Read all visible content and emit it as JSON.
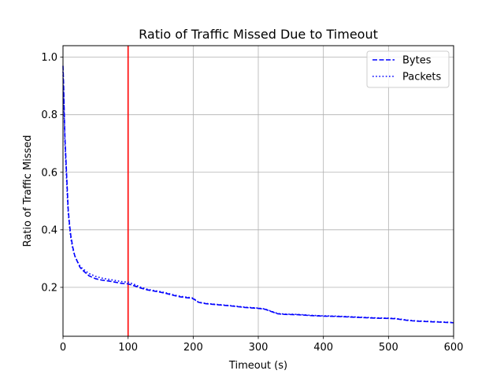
{
  "chart_data": {
    "type": "line",
    "title": "Ratio of Traffic Missed Due to Timeout",
    "xlabel": "Timeout (s)",
    "ylabel": "Ratio of Traffic Missed",
    "xlim": [
      0,
      600
    ],
    "ylim": [
      0.03,
      1.04
    ],
    "xticks": [
      0,
      100,
      200,
      300,
      400,
      500,
      600
    ],
    "xtick_labels": [
      "0",
      "100",
      "200",
      "300",
      "400",
      "500",
      "600"
    ],
    "yticks": [
      0.2,
      0.4,
      0.6,
      0.8,
      1.0
    ],
    "ytick_labels": [
      "0.2",
      "0.4",
      "0.6",
      "0.8",
      "1.0"
    ],
    "grid": true,
    "legend_position": "top-right",
    "vertical_line": {
      "x": 100,
      "color": "#ff0000"
    },
    "series": [
      {
        "name": "Bytes",
        "style": "dashed",
        "color": "#0000ff",
        "x": [
          0,
          1,
          2,
          3,
          4,
          5,
          6,
          7,
          8,
          10,
          12,
          15,
          18,
          22,
          26,
          30,
          40,
          50,
          60,
          70,
          80,
          90,
          100,
          110,
          120,
          130,
          140,
          150,
          160,
          170,
          180,
          190,
          198,
          202,
          206,
          210,
          220,
          240,
          260,
          280,
          300,
          310,
          320,
          330,
          340,
          360,
          380,
          400,
          420,
          440,
          460,
          480,
          500,
          510,
          520,
          530,
          540,
          560,
          580,
          600
        ],
        "values": [
          0.97,
          0.9,
          0.8,
          0.72,
          0.67,
          0.62,
          0.57,
          0.52,
          0.47,
          0.42,
          0.38,
          0.34,
          0.31,
          0.29,
          0.27,
          0.26,
          0.24,
          0.23,
          0.225,
          0.222,
          0.218,
          0.214,
          0.212,
          0.205,
          0.197,
          0.191,
          0.187,
          0.183,
          0.178,
          0.172,
          0.167,
          0.164,
          0.162,
          0.158,
          0.15,
          0.147,
          0.143,
          0.139,
          0.135,
          0.13,
          0.127,
          0.124,
          0.116,
          0.108,
          0.106,
          0.105,
          0.102,
          0.1,
          0.099,
          0.097,
          0.095,
          0.093,
          0.092,
          0.091,
          0.088,
          0.085,
          0.083,
          0.081,
          0.079,
          0.077
        ]
      },
      {
        "name": "Packets",
        "style": "dotted",
        "color": "#0000ff",
        "x": [
          0,
          1,
          2,
          3,
          4,
          5,
          6,
          7,
          8,
          10,
          12,
          15,
          18,
          22,
          26,
          30,
          40,
          50,
          60,
          70,
          80,
          90,
          100,
          110,
          120,
          130,
          140,
          150,
          160,
          170,
          180,
          190,
          198,
          202,
          206,
          210,
          220,
          240,
          260,
          280,
          300,
          310,
          320,
          330,
          340,
          360,
          380,
          400,
          420,
          440,
          460,
          480,
          500,
          510,
          520,
          530,
          540,
          560,
          580,
          600
        ],
        "values": [
          0.95,
          0.87,
          0.78,
          0.7,
          0.65,
          0.6,
          0.55,
          0.5,
          0.46,
          0.41,
          0.37,
          0.335,
          0.31,
          0.29,
          0.275,
          0.265,
          0.248,
          0.238,
          0.232,
          0.228,
          0.224,
          0.22,
          0.218,
          0.21,
          0.2,
          0.193,
          0.189,
          0.185,
          0.18,
          0.174,
          0.169,
          0.166,
          0.164,
          0.159,
          0.151,
          0.148,
          0.144,
          0.14,
          0.136,
          0.131,
          0.128,
          0.125,
          0.117,
          0.109,
          0.107,
          0.106,
          0.103,
          0.101,
          0.1,
          0.098,
          0.096,
          0.094,
          0.093,
          0.092,
          0.089,
          0.086,
          0.084,
          0.082,
          0.08,
          0.078
        ]
      }
    ]
  }
}
